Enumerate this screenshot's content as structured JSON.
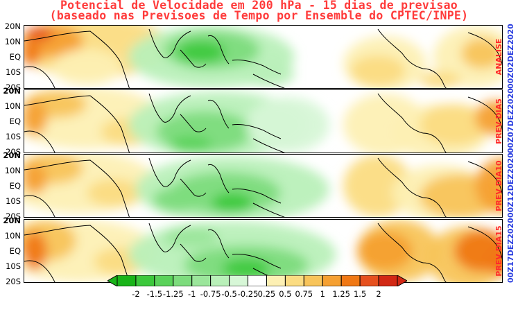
{
  "map": {
    "title_line1": "Potencial de Velocidade em 200 hPa - 15 dias de previsao",
    "title_line2": "(baseado nas Previsoes de Tempo por Ensemble do CPTEC/INPE)",
    "panels": [
      {
        "label": "ANALISE",
        "date": "00Z02DEZ2020"
      },
      {
        "label": "PREV DIA5",
        "date": "00Z07DEZ2020"
      },
      {
        "label": "PREV DIA10",
        "date": "00Z12DEZ2020"
      },
      {
        "label": "PREV DIA15",
        "date": "00Z17DEZ2020"
      }
    ],
    "lat_labels": [
      "20N",
      "10N",
      "EQ",
      "10S",
      "20S"
    ],
    "colorbar": {
      "ticks": [
        "-2",
        "-1.5",
        "-1.25",
        "-1",
        "-0.75",
        "-0.5",
        "-0.25",
        "0.25",
        "0.5",
        "0.75",
        "1",
        "1.25",
        "1.5",
        "2"
      ],
      "colors": [
        "#19b419",
        "#3cc83c",
        "#5ad25a",
        "#7ddc7d",
        "#9be69b",
        "#b9f0b9",
        "#d7f7d7",
        "#ffffff",
        "#fdf0b4",
        "#fbdc82",
        "#f8c45a",
        "#f5a032",
        "#f07814",
        "#e6501e",
        "#d22814"
      ],
      "low_arrow_color": "#19b419",
      "high_arrow_color": "#d22814"
    }
  }
}
